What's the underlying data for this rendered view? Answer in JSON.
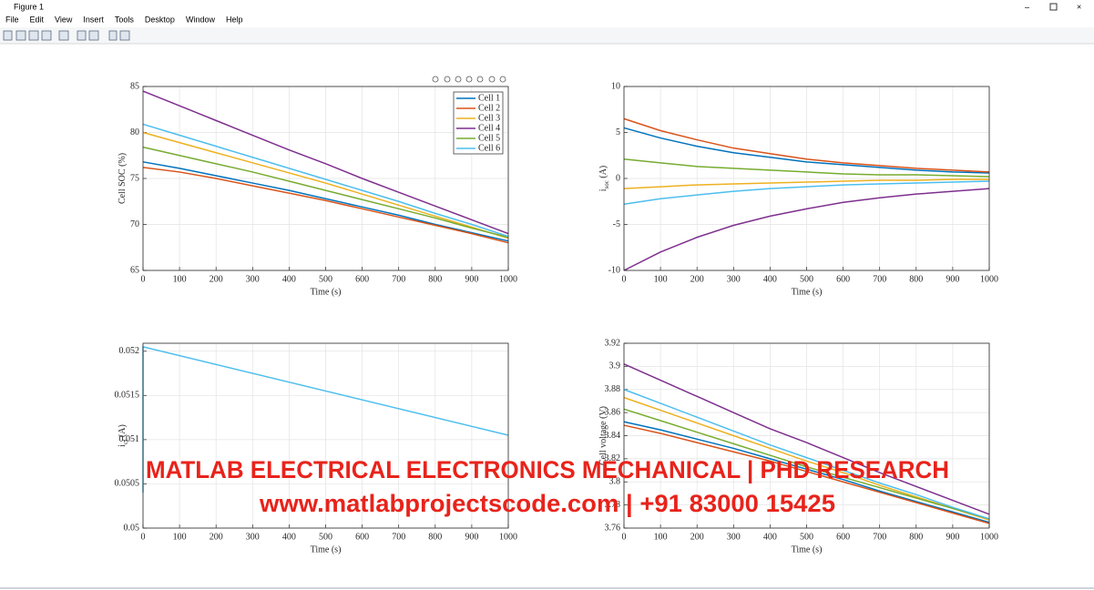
{
  "window": {
    "title": "Figure 1",
    "menu": [
      "File",
      "Edit",
      "View",
      "Insert",
      "Tools",
      "Desktop",
      "Window",
      "Help"
    ]
  },
  "watermark": [
    "MATLAB ELECTRICAL ELECTRONICS MECHANICAL | PHD RESEARCH",
    "www.matlabprojectscode.com | +91 83000 15425"
  ],
  "chart_data": [
    {
      "type": "line",
      "x_label": "Time (s)",
      "y_label": [
        "Cell SOC (%)"
      ],
      "grid": true,
      "legend": "northeast",
      "x": [
        0,
        100,
        200,
        300,
        400,
        500,
        600,
        700,
        800,
        900,
        1000
      ],
      "xlim": [
        0,
        1000
      ],
      "xticks": [
        0,
        100,
        200,
        300,
        400,
        500,
        600,
        700,
        800,
        900,
        1000
      ],
      "ylim": [
        65,
        85
      ],
      "yticks": [
        65,
        70,
        75,
        80,
        85
      ],
      "series": [
        {
          "name": "Cell 1",
          "color": "#0072BD",
          "values": [
            76.8,
            76.1,
            75.3,
            74.5,
            73.7,
            72.8,
            71.9,
            71.0,
            70.0,
            69.1,
            68.2
          ]
        },
        {
          "name": "Cell 2",
          "color": "#D95319",
          "values": [
            76.2,
            75.7,
            75.0,
            74.2,
            73.4,
            72.6,
            71.7,
            70.8,
            69.9,
            69.0,
            68.0
          ]
        },
        {
          "name": "Cell 3",
          "color": "#EDB120",
          "values": [
            80.0,
            78.9,
            77.8,
            76.7,
            75.6,
            74.5,
            73.3,
            72.1,
            70.9,
            69.7,
            68.5
          ]
        },
        {
          "name": "Cell 4",
          "color": "#7E2F8E",
          "values": [
            84.5,
            82.9,
            81.3,
            79.7,
            78.1,
            76.6,
            75.0,
            73.5,
            72.0,
            70.5,
            69.0
          ]
        },
        {
          "name": "Cell 5",
          "color": "#77AC30",
          "values": [
            78.4,
            77.5,
            76.6,
            75.7,
            74.7,
            73.7,
            72.7,
            71.7,
            70.7,
            69.6,
            68.6
          ]
        },
        {
          "name": "Cell 6",
          "color": "#4DBEEE",
          "values": [
            80.9,
            79.7,
            78.5,
            77.3,
            76.1,
            74.9,
            73.7,
            72.5,
            71.2,
            70.0,
            68.7
          ]
        }
      ]
    },
    {
      "type": "line",
      "x_label": "Time (s)",
      "y_label": [
        "i",
        "soc",
        " (A)"
      ],
      "grid": true,
      "x": [
        0,
        100,
        200,
        300,
        400,
        500,
        600,
        700,
        800,
        900,
        1000
      ],
      "xlim": [
        0,
        1000
      ],
      "xticks": [
        0,
        100,
        200,
        300,
        400,
        500,
        600,
        700,
        800,
        900,
        1000
      ],
      "ylim": [
        -10,
        10
      ],
      "yticks": [
        -10,
        -5,
        0,
        5,
        10
      ],
      "series": [
        {
          "color": "#0072BD",
          "values": [
            5.5,
            4.4,
            3.5,
            2.8,
            2.3,
            1.8,
            1.5,
            1.2,
            0.9,
            0.7,
            0.6
          ]
        },
        {
          "color": "#D95319",
          "values": [
            6.5,
            5.2,
            4.2,
            3.3,
            2.7,
            2.1,
            1.7,
            1.4,
            1.1,
            0.9,
            0.7
          ]
        },
        {
          "color": "#EDB120",
          "values": [
            -1.1,
            -0.9,
            -0.7,
            -0.6,
            -0.5,
            -0.4,
            -0.3,
            -0.2,
            -0.2,
            -0.1,
            -0.1
          ]
        },
        {
          "color": "#7E2F8E",
          "values": [
            -10,
            -8.0,
            -6.4,
            -5.1,
            -4.1,
            -3.3,
            -2.6,
            -2.1,
            -1.7,
            -1.4,
            -1.1
          ]
        },
        {
          "color": "#77AC30",
          "values": [
            2.1,
            1.7,
            1.3,
            1.1,
            0.9,
            0.7,
            0.5,
            0.4,
            0.4,
            0.3,
            0.2
          ]
        },
        {
          "color": "#4DBEEE",
          "values": [
            -2.8,
            -2.2,
            -1.8,
            -1.4,
            -1.1,
            -0.9,
            -0.7,
            -0.6,
            -0.5,
            -0.4,
            -0.3
          ]
        }
      ]
    },
    {
      "type": "line",
      "x_label": "Time (s)",
      "y_label": [
        "i",
        "cf",
        " (A)"
      ],
      "grid": true,
      "x": [
        0,
        0,
        1000
      ],
      "xlim": [
        0,
        1000
      ],
      "xticks": [
        0,
        100,
        200,
        300,
        400,
        500,
        600,
        700,
        800,
        900,
        1000
      ],
      "ylim": [
        0.05,
        0.05209
      ],
      "yticks": [
        0.05,
        0.0505,
        0.051,
        0.0515,
        0.052
      ],
      "color": "#4DBEEE",
      "values": [
        0.0504,
        0.05205,
        0.05105
      ]
    },
    {
      "type": "line",
      "x_label": "Time (s)",
      "y_label": [
        "Cell voltage (V)"
      ],
      "grid": true,
      "x": [
        0,
        100,
        200,
        300,
        400,
        500,
        600,
        700,
        800,
        900,
        1000
      ],
      "xlim": [
        0,
        1000
      ],
      "xticks": [
        0,
        100,
        200,
        300,
        400,
        500,
        600,
        700,
        800,
        900,
        1000
      ],
      "ylim": [
        3.76,
        3.92
      ],
      "yticks": [
        3.76,
        3.78,
        3.8,
        3.82,
        3.84,
        3.86,
        3.88,
        3.9,
        3.92
      ],
      "series": [
        {
          "color": "#0072BD",
          "values": [
            3.852,
            3.845,
            3.837,
            3.829,
            3.82,
            3.811,
            3.802,
            3.792,
            3.783,
            3.774,
            3.765
          ]
        },
        {
          "color": "#D95319",
          "values": [
            3.849,
            3.842,
            3.834,
            3.826,
            3.818,
            3.809,
            3.8,
            3.791,
            3.782,
            3.773,
            3.764
          ]
        },
        {
          "color": "#EDB120",
          "values": [
            3.873,
            3.862,
            3.851,
            3.84,
            3.829,
            3.818,
            3.808,
            3.797,
            3.787,
            3.777,
            3.767
          ]
        },
        {
          "color": "#7E2F8E",
          "values": [
            3.902,
            3.888,
            3.874,
            3.86,
            3.846,
            3.834,
            3.821,
            3.808,
            3.796,
            3.784,
            3.772
          ]
        },
        {
          "color": "#77AC30",
          "values": [
            3.863,
            3.853,
            3.843,
            3.833,
            3.823,
            3.813,
            3.804,
            3.795,
            3.786,
            3.777,
            3.768
          ]
        },
        {
          "color": "#4DBEEE",
          "values": [
            3.88,
            3.868,
            3.856,
            3.844,
            3.832,
            3.821,
            3.81,
            3.799,
            3.789,
            3.778,
            3.768
          ]
        }
      ]
    }
  ]
}
